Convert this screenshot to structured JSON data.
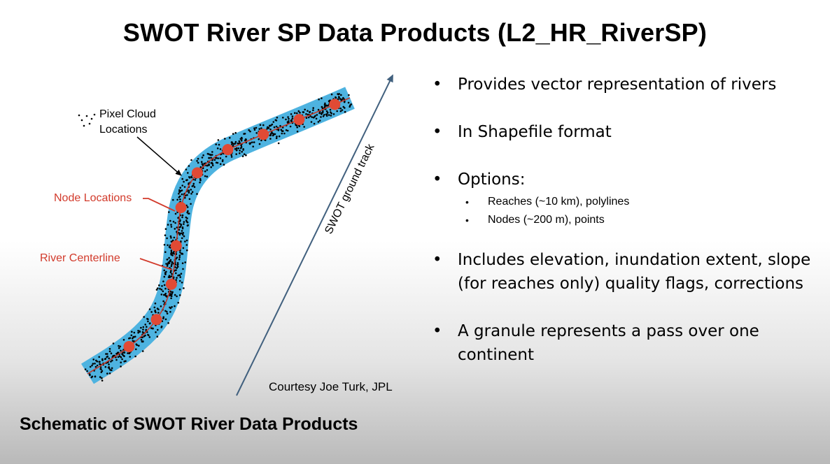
{
  "title": "SWOT River SP Data Products (L2_HR_RiverSP)",
  "schematic": {
    "pixel_cloud_label": [
      "Pixel Cloud",
      "Locations"
    ],
    "node_locations_label": "Node Locations",
    "river_centerline_label": "River Centerline",
    "ground_track_label": "SWOT ground track",
    "colors": {
      "river_band": "#4eb3e0",
      "node": "#e04a35",
      "centerline": "#c0392b",
      "ground_track": "#41607e",
      "red_label": "#d23a2b"
    }
  },
  "courtesy": "Courtesy Joe Turk, JPL",
  "caption": "Schematic of SWOT River Data Products",
  "bullets": [
    {
      "text": "Provides vector representation of rivers",
      "sub": []
    },
    {
      "text": "In Shapefile format",
      "sub": []
    },
    {
      "text": "Options:",
      "sub": [
        "Reaches (~10 km), polylines",
        "Nodes (~200 m), points"
      ]
    },
    {
      "text": "Includes elevation, inundation extent, slope (for reaches only) quality flags, corrections",
      "sub": []
    },
    {
      "text": "A granule represents a pass over one continent",
      "sub": []
    }
  ]
}
